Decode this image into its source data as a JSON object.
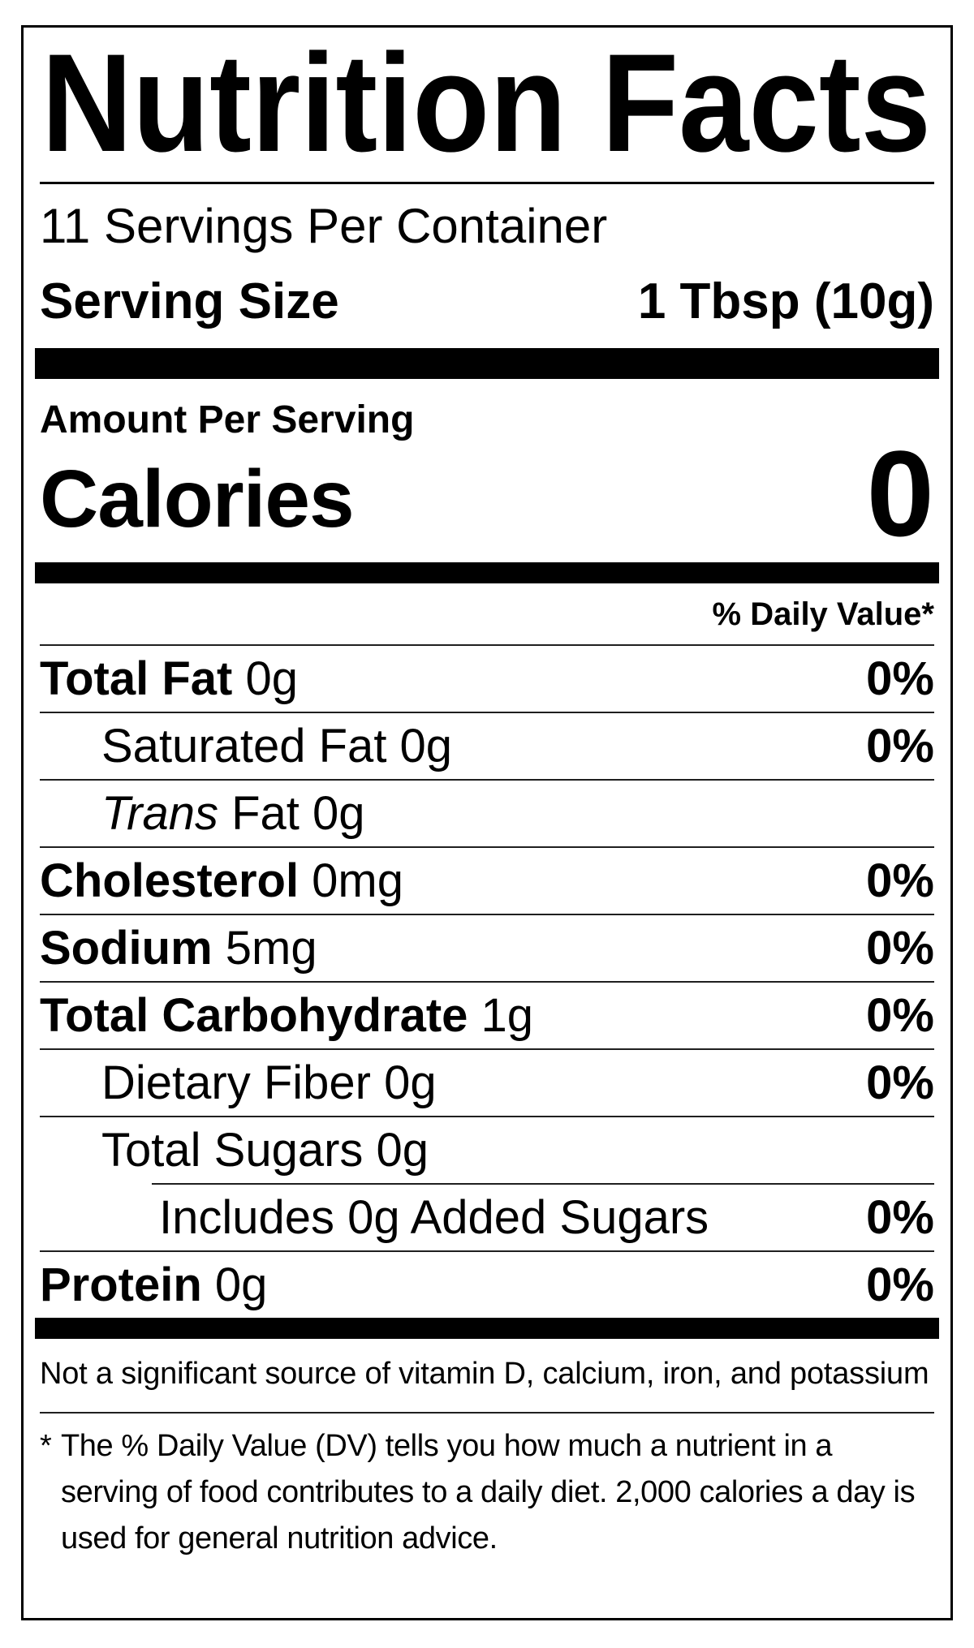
{
  "label": {
    "title": "Nutrition Facts",
    "servings_per_container": "11 Servings Per Container",
    "serving_size_label": "Serving Size",
    "serving_size_value": "1 Tbsp (10g)",
    "amount_per_serving": "Amount Per Serving",
    "calories_label": "Calories",
    "calories_value": "0",
    "daily_value_header": "% Daily Value*",
    "rows": [
      {
        "name_bold": "Total Fat",
        "name_italic": "",
        "name_regular": " 0g",
        "daily_value": "0%",
        "indent": 0,
        "rule_below": "full"
      },
      {
        "name_bold": "",
        "name_italic": "",
        "name_regular": "Saturated Fat 0g",
        "daily_value": "0%",
        "indent": 1,
        "rule_below": "full"
      },
      {
        "name_bold": "",
        "name_italic": "Trans",
        "name_regular": " Fat 0g",
        "daily_value": "",
        "indent": 1,
        "rule_below": "full"
      },
      {
        "name_bold": "Cholesterol",
        "name_italic": "",
        "name_regular": " 0mg",
        "daily_value": "0%",
        "indent": 0,
        "rule_below": "full"
      },
      {
        "name_bold": "Sodium",
        "name_italic": "",
        "name_regular": " 5mg",
        "daily_value": "0%",
        "indent": 0,
        "rule_below": "full"
      },
      {
        "name_bold": "Total Carbohydrate",
        "name_italic": "",
        "name_regular": " 1g",
        "daily_value": "0%",
        "indent": 0,
        "rule_below": "full"
      },
      {
        "name_bold": "",
        "name_italic": "",
        "name_regular": "Dietary Fiber 0g",
        "daily_value": "0%",
        "indent": 1,
        "rule_below": "full"
      },
      {
        "name_bold": "",
        "name_italic": "",
        "name_regular": "Total Sugars 0g",
        "daily_value": "",
        "indent": 1,
        "rule_below": "partial"
      },
      {
        "name_bold": "",
        "name_italic": "",
        "name_regular": "Includes 0g Added Sugars",
        "daily_value": "0%",
        "indent": 2,
        "rule_below": "full"
      },
      {
        "name_bold": "Protein",
        "name_italic": "",
        "name_regular": " 0g",
        "daily_value": "0%",
        "indent": 0,
        "rule_below": "none"
      }
    ],
    "not_significant_note": "Not a significant source of vitamin D, calcium, iron, and potassium",
    "footnote_marker": "*",
    "footnote_text": "The % Daily Value (DV) tells you how much a nutrient in a serving of food contributes to a daily diet. 2,000 calories a day is used for general nutrition advice."
  },
  "colors": {
    "text": "#000000",
    "background": "#ffffff",
    "rule": "#1f1f1f",
    "bar": "#000000"
  }
}
